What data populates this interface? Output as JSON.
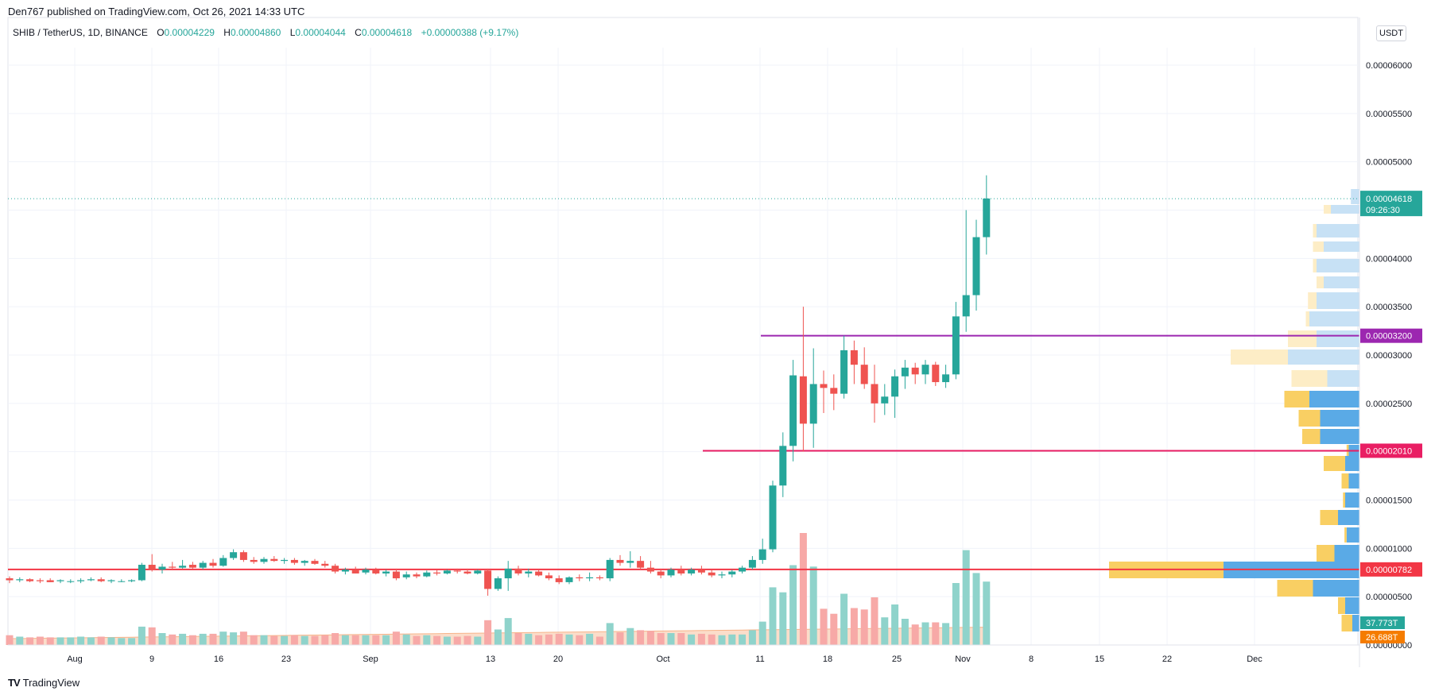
{
  "header": {
    "attribution": "Den767 published on TradingView.com, Oct 26, 2021 14:33 UTC"
  },
  "legend": {
    "symbol": "SHIB / TetherUS, 1D, BINANCE",
    "o_label": "O",
    "o_value": "0.00004229",
    "h_label": "H",
    "h_value": "0.00004860",
    "l_label": "L",
    "l_value": "0.00004044",
    "c_label": "C",
    "c_value": "0.00004618",
    "change": "+0.00000388 (+9.17%)"
  },
  "toolbar": {
    "currency": "USDT"
  },
  "footer": {
    "logo_mark": "TV",
    "brand": "TradingView"
  },
  "colors": {
    "up": "#26a69a",
    "down": "#ef5350",
    "volume_up": "#8fd3cb",
    "volume_down": "#f7a9a7",
    "level_purple": "#9c27b0",
    "level_pink": "#e91e63",
    "level_red": "#f23645",
    "profile_blue": "#5aaae6",
    "profile_blue_light": "#c7e1f5",
    "profile_yellow": "#f9cf63",
    "profile_yellow_light": "#fdedc6",
    "volume_ma": "#f7b48a",
    "grid": "#f0f3fa"
  },
  "chart_data": {
    "type": "candlestick",
    "symbol": "SHIB / TetherUS",
    "interval": "1D",
    "exchange": "BINANCE",
    "y_axis": {
      "ticks": [
        "0.00006000",
        "0.00005500",
        "0.00005000",
        "0.00004500",
        "0.00004000",
        "0.00003500",
        "0.00003000",
        "0.00002500",
        "0.00002000",
        "0.00001500",
        "0.00001000",
        "0.00000500",
        "0.00000000"
      ],
      "range": [
        0,
        6.2e-05
      ]
    },
    "x_axis": {
      "ticks": [
        "Aug",
        "9",
        "16",
        "23",
        "Sep",
        "13",
        "20",
        "Oct",
        "11",
        "18",
        "25",
        "Nov",
        "8",
        "15",
        "22",
        "Dec"
      ]
    },
    "candles": {
      "fields": [
        "date",
        "open",
        "high",
        "low",
        "close"
      ],
      "data": [
        [
          "2021-07-29",
          6.9e-06,
          7.1e-06,
          6.4e-06,
          6.7e-06
        ],
        [
          "2021-07-30",
          6.7e-06,
          7e-06,
          6.5e-06,
          6.8e-06
        ],
        [
          "2021-07-31",
          6.8e-06,
          6.9e-06,
          6.5e-06,
          6.6e-06
        ],
        [
          "2021-08-01",
          6.7e-06,
          6.9e-06,
          6.4e-06,
          6.6e-06
        ],
        [
          "2021-08-02",
          6.7e-06,
          6.9e-06,
          6.5e-06,
          6.5e-06
        ],
        [
          "2021-08-03",
          6.6e-06,
          6.8e-06,
          6.4e-06,
          6.7e-06
        ],
        [
          "2021-08-04",
          6.6e-06,
          6.8e-06,
          6.4e-06,
          6.6e-06
        ],
        [
          "2021-08-05",
          6.6e-06,
          6.9e-06,
          6.4e-06,
          6.7e-06
        ],
        [
          "2021-08-06",
          6.7e-06,
          7e-06,
          6.6e-06,
          6.8e-06
        ],
        [
          "2021-08-07",
          6.8e-06,
          7e-06,
          6.5e-06,
          6.6e-06
        ],
        [
          "2021-08-08",
          6.6e-06,
          6.8e-06,
          6.4e-06,
          6.7e-06
        ],
        [
          "2021-08-09",
          6.6e-06,
          6.8e-06,
          6.5e-06,
          6.6e-06
        ],
        [
          "2021-08-10",
          6.6e-06,
          6.8e-06,
          6.5e-06,
          6.7e-06
        ],
        [
          "2021-08-11",
          6.7e-06,
          8.5e-06,
          6.6e-06,
          8.3e-06
        ],
        [
          "2021-08-12",
          8.3e-06,
          9.4e-06,
          7.6e-06,
          7.8e-06
        ],
        [
          "2021-08-13",
          7.8e-06,
          8.4e-06,
          7.4e-06,
          8.1e-06
        ],
        [
          "2021-08-14",
          8.1e-06,
          8.6e-06,
          7.8e-06,
          8e-06
        ],
        [
          "2021-08-15",
          8e-06,
          8.8e-06,
          7.9e-06,
          8.2e-06
        ],
        [
          "2021-08-16",
          8.3e-06,
          8.6e-06,
          7.9e-06,
          8e-06
        ],
        [
          "2021-08-17",
          8e-06,
          8.7e-06,
          7.8e-06,
          8.5e-06
        ],
        [
          "2021-08-18",
          8.5e-06,
          8.9e-06,
          8e-06,
          8.2e-06
        ],
        [
          "2021-08-19",
          8.2e-06,
          9.3e-06,
          8.1e-06,
          9e-06
        ],
        [
          "2021-08-20",
          9e-06,
          9.9e-06,
          8.8e-06,
          9.6e-06
        ],
        [
          "2021-08-21",
          9.6e-06,
          9.8e-06,
          8.6e-06,
          8.8e-06
        ],
        [
          "2021-08-22",
          8.8e-06,
          9.1e-06,
          8.4e-06,
          8.6e-06
        ],
        [
          "2021-08-23",
          8.6e-06,
          9.1e-06,
          8.4e-06,
          8.9e-06
        ],
        [
          "2021-08-24",
          8.9e-06,
          9.2e-06,
          8.6e-06,
          8.7e-06
        ],
        [
          "2021-08-25",
          8.7e-06,
          9e-06,
          8.4e-06,
          8.8e-06
        ],
        [
          "2021-08-26",
          8.8e-06,
          9e-06,
          8.3e-06,
          8.5e-06
        ],
        [
          "2021-08-27",
          8.5e-06,
          8.8e-06,
          8.2e-06,
          8.7e-06
        ],
        [
          "2021-08-28",
          8.7e-06,
          8.9e-06,
          8.3e-06,
          8.4e-06
        ],
        [
          "2021-08-29",
          8.4e-06,
          8.7e-06,
          8e-06,
          8.2e-06
        ],
        [
          "2021-08-30",
          8.2e-06,
          8.4e-06,
          7.4e-06,
          7.6e-06
        ],
        [
          "2021-08-31",
          7.6e-06,
          8e-06,
          7.3e-06,
          7.8e-06
        ],
        [
          "2021-09-01",
          7.8e-06,
          8.1e-06,
          7.4e-06,
          7.4e-06
        ],
        [
          "2021-09-02",
          7.5e-06,
          8e-06,
          7.3e-06,
          7.8e-06
        ],
        [
          "2021-09-03",
          7.8e-06,
          8e-06,
          7.3e-06,
          7.4e-06
        ],
        [
          "2021-09-04",
          7.4e-06,
          7.8e-06,
          7.1e-06,
          7.6e-06
        ],
        [
          "2021-09-05",
          7.6e-06,
          7.9e-06,
          6.7e-06,
          6.9e-06
        ],
        [
          "2021-09-06",
          7e-06,
          7.6e-06,
          6.8e-06,
          7.3e-06
        ],
        [
          "2021-09-07",
          7.3e-06,
          7.5e-06,
          6.9e-06,
          7.1e-06
        ],
        [
          "2021-09-08",
          7.1e-06,
          7.7e-06,
          7e-06,
          7.5e-06
        ],
        [
          "2021-09-09",
          7.5e-06,
          7.8e-06,
          7.2e-06,
          7.4e-06
        ],
        [
          "2021-09-10",
          7.4e-06,
          7.8e-06,
          7.3e-06,
          7.7e-06
        ],
        [
          "2021-09-11",
          7.7e-06,
          7.9e-06,
          7.4e-06,
          7.6e-06
        ],
        [
          "2021-09-12",
          7.6e-06,
          7.9e-06,
          7.3e-06,
          7.4e-06
        ],
        [
          "2021-09-13",
          7.4e-06,
          7.8e-06,
          7.3e-06,
          7.7e-06
        ],
        [
          "2021-09-14",
          7.7e-06,
          7.9e-06,
          5.1e-06,
          5.8e-06
        ],
        [
          "2021-09-15",
          5.8e-06,
          7.1e-06,
          5.6e-06,
          6.9e-06
        ],
        [
          "2021-09-16",
          6.9e-06,
          8.7e-06,
          5.6e-06,
          7.9e-06
        ],
        [
          "2021-09-17",
          7.9e-06,
          8.2e-06,
          7.2e-06,
          7.4e-06
        ],
        [
          "2021-09-18",
          7.4e-06,
          7.9e-06,
          7e-06,
          7.6e-06
        ],
        [
          "2021-09-19",
          7.6e-06,
          7.8e-06,
          7.1e-06,
          7.2e-06
        ],
        [
          "2021-09-20",
          7.2e-06,
          7.5e-06,
          6.7e-06,
          6.9e-06
        ],
        [
          "2021-09-21",
          6.9e-06,
          7.2e-06,
          6.3e-06,
          6.5e-06
        ],
        [
          "2021-09-22",
          6.5e-06,
          7.1e-06,
          6.3e-06,
          7e-06
        ],
        [
          "2021-09-23",
          7e-06,
          7.3e-06,
          6.6e-06,
          6.9e-06
        ],
        [
          "2021-09-24",
          6.9e-06,
          7.5e-06,
          6.6e-06,
          7e-06
        ],
        [
          "2021-09-25",
          7e-06,
          7.2e-06,
          6.7e-06,
          6.9e-06
        ],
        [
          "2021-09-26",
          6.9e-06,
          9e-06,
          6.6e-06,
          8.8e-06
        ],
        [
          "2021-09-27",
          8.8e-06,
          9.3e-06,
          8.2e-06,
          8.5e-06
        ],
        [
          "2021-09-28",
          8.5e-06,
          9.7e-06,
          8e-06,
          8.7e-06
        ],
        [
          "2021-09-29",
          8.7e-06,
          9.2e-06,
          7.8e-06,
          8e-06
        ],
        [
          "2021-09-30",
          8e-06,
          8.7e-06,
          7.4e-06,
          7.6e-06
        ],
        [
          "2021-10-01",
          7.6e-06,
          7.9e-06,
          6.9e-06,
          7.2e-06
        ],
        [
          "2021-10-02",
          7.2e-06,
          8e-06,
          7e-06,
          7.8e-06
        ],
        [
          "2021-10-03",
          7.8e-06,
          8.2e-06,
          7.2e-06,
          7.4e-06
        ],
        [
          "2021-10-04",
          7.4e-06,
          8e-06,
          7.2e-06,
          7.8e-06
        ],
        [
          "2021-10-05",
          7.8e-06,
          8.2e-06,
          7.3e-06,
          7.5e-06
        ],
        [
          "2021-10-06",
          7.5e-06,
          7.8e-06,
          7e-06,
          7.2e-06
        ],
        [
          "2021-10-07",
          7.2e-06,
          7.6e-06,
          6.9e-06,
          7.3e-06
        ],
        [
          "2021-10-08",
          7.3e-06,
          7.8e-06,
          7e-06,
          7.6e-06
        ],
        [
          "2021-10-09",
          7.6e-06,
          8.2e-06,
          7.4e-06,
          8e-06
        ],
        [
          "2021-10-10",
          8e-06,
          9.2e-06,
          7.8e-06,
          8.8e-06
        ],
        [
          "2021-10-11",
          8.8e-06,
          1.1e-05,
          8.4e-06,
          9.9e-06
        ],
        [
          "2021-10-12",
          9.9e-06,
          1.7e-05,
          9.6e-06,
          1.65e-05
        ],
        [
          "2021-10-13",
          1.65e-05,
          2.2e-05,
          1.53e-05,
          2.06e-05
        ],
        [
          "2021-10-14",
          2.06e-05,
          2.95e-05,
          1.9e-05,
          2.79e-05
        ],
        [
          "2021-10-15",
          2.78e-05,
          3.5e-05,
          2e-05,
          2.29e-05
        ],
        [
          "2021-10-16",
          2.29e-05,
          3.07e-05,
          2.04e-05,
          2.7e-05
        ],
        [
          "2021-10-17",
          2.7e-05,
          2.84e-05,
          2.4e-05,
          2.66e-05
        ],
        [
          "2021-10-18",
          2.66e-05,
          2.8e-05,
          2.43e-05,
          2.6e-05
        ],
        [
          "2021-10-19",
          2.6e-05,
          3.2e-05,
          2.55e-05,
          3.05e-05
        ],
        [
          "2021-10-20",
          3.05e-05,
          3.15e-05,
          2.7e-05,
          2.9e-05
        ],
        [
          "2021-10-21",
          2.9e-05,
          3.08e-05,
          2.65e-05,
          2.7e-05
        ],
        [
          "2021-10-22",
          2.7e-05,
          2.9e-05,
          2.3e-05,
          2.5e-05
        ],
        [
          "2021-10-23",
          2.5e-05,
          2.7e-05,
          2.38e-05,
          2.57e-05
        ],
        [
          "2021-10-24",
          2.57e-05,
          2.85e-05,
          2.35e-05,
          2.78e-05
        ],
        [
          "2021-10-25",
          2.78e-05,
          2.95e-05,
          2.65e-05,
          2.87e-05
        ],
        [
          "2021-10-26",
          2.87e-05,
          2.92e-05,
          2.7e-05,
          2.8e-05
        ],
        [
          "2021-10-27",
          2.8e-05,
          2.95e-05,
          2.7e-05,
          2.9e-05
        ],
        [
          "2021-10-28",
          2.9e-05,
          2.93e-05,
          2.68e-05,
          2.72e-05
        ],
        [
          "2021-10-29",
          2.72e-05,
          2.9e-05,
          2.66e-05,
          2.8e-05
        ],
        [
          "2021-10-30",
          2.8e-05,
          3.55e-05,
          2.75e-05,
          3.4e-05
        ],
        [
          "2021-10-31",
          3.4e-05,
          4.5e-05,
          3.24e-05,
          3.62e-05
        ],
        [
          "2021-11-01",
          3.62e-05,
          4.4e-05,
          3.46e-05,
          4.22e-05
        ],
        [
          "2021-11-02",
          4.22e-05,
          4.86e-05,
          4.04e-05,
          4.62e-05
        ]
      ]
    },
    "volume": {
      "last_green": "37.773T",
      "last_red": "26.688T"
    },
    "levels": [
      {
        "price": 3.2e-05,
        "label": "0.00003200",
        "color": "#9c27b0"
      },
      {
        "price": 2.01e-05,
        "label": "0.00002010",
        "color": "#e91e63"
      },
      {
        "price": 7.82e-06,
        "label": "0.00000782",
        "color": "#f23645"
      }
    ],
    "last_price": {
      "label": "0.00004618",
      "countdown": "09:26:30",
      "price": 4.618e-05
    }
  }
}
